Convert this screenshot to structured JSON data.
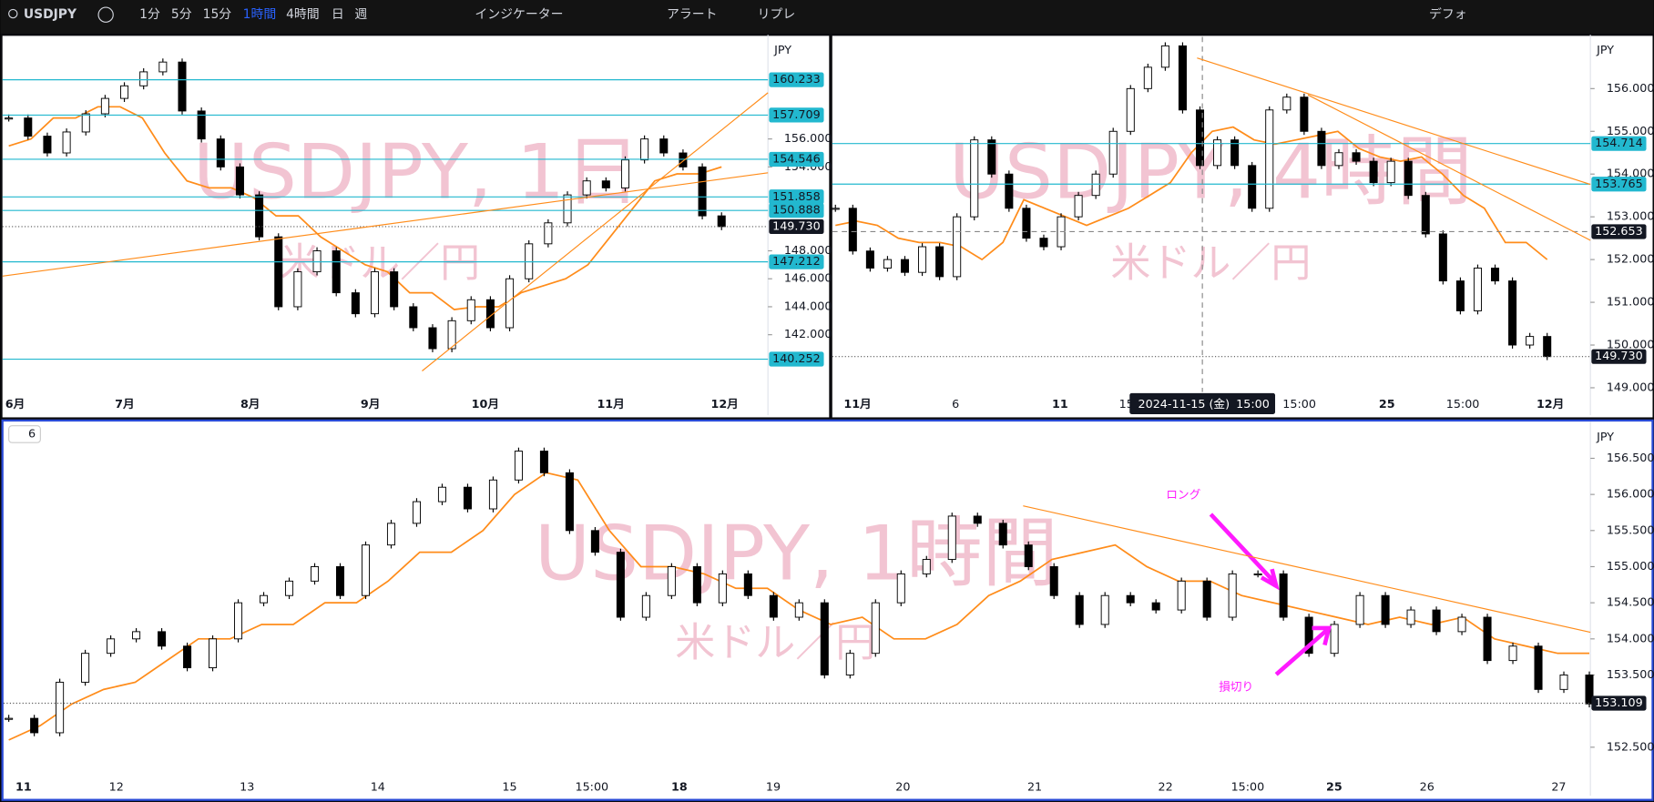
{
  "toolbar": {
    "symbol": "USDJPY",
    "intervals": [
      "1分",
      "5分",
      "15分",
      "1時間",
      "4時間",
      "日",
      "週"
    ],
    "active": 3,
    "indicators": "インジケーター",
    "alert": "アラート",
    "replay": "リプレ",
    "layout": "デフォ"
  },
  "panels": [
    {
      "title": "USDJPY, 1日",
      "subtitle": "米ドル／円",
      "currency": "JPY",
      "ylim": [
        137.9,
        163.3
      ],
      "yticks": [
        {
          "value": 142,
          "label": "142.000"
        },
        {
          "value": 144,
          "label": "144.000"
        },
        {
          "value": 146,
          "label": "146.000"
        },
        {
          "value": 148,
          "label": "148.000"
        },
        {
          "value": 154,
          "label": "154.000"
        },
        {
          "value": 156,
          "label": "156.000"
        }
      ],
      "xlabels": [
        "6月",
        "7月",
        "8月",
        "9月",
        "10月",
        "11月",
        "12月"
      ],
      "price_labels": [
        {
          "value": 160.233,
          "label": "160.233",
          "kind": "level"
        },
        {
          "value": 157.709,
          "label": "157.709",
          "kind": "level"
        },
        {
          "value": 154.546,
          "label": "154.546",
          "kind": "level"
        },
        {
          "value": 151.858,
          "label": "151.858",
          "kind": "level"
        },
        {
          "value": 150.888,
          "label": "150.888",
          "kind": "level"
        },
        {
          "value": 147.212,
          "label": "147.212",
          "kind": "level"
        },
        {
          "value": 140.252,
          "label": "140.252",
          "kind": "level"
        },
        {
          "value": 149.73,
          "label": "149.730",
          "kind": "last"
        }
      ],
      "candles": [
        157.5,
        156.2,
        155,
        156.5,
        157.8,
        158.9,
        159.8,
        160.8,
        161.5,
        158,
        156,
        154,
        152,
        149,
        144,
        146.5,
        148,
        145,
        143.5,
        146.5,
        144,
        142.5,
        141,
        143,
        144.5,
        142.5,
        146,
        148.5,
        150,
        152,
        153,
        152.5,
        154.5,
        156,
        155,
        154,
        150.5,
        149.73
      ],
      "baseline": [
        155.5,
        156,
        157.5,
        157.5,
        158.3,
        158.3,
        157.5,
        155,
        153,
        152.5,
        152.5,
        151.8,
        150.5,
        150.5,
        149,
        148,
        147,
        146.5,
        145,
        145,
        143.8,
        144,
        144,
        145,
        145.5,
        146,
        147,
        149,
        151,
        153,
        153.5,
        153.5,
        154
      ]
    },
    {
      "title": "USDJPY, 4時間",
      "subtitle": "米ドル／円",
      "currency": "JPY",
      "ylim": [
        148.9,
        157.21
      ],
      "yticks": [
        {
          "value": 149,
          "label": "149.000"
        },
        {
          "value": 150,
          "label": "150.000"
        },
        {
          "value": 151,
          "label": "151.000"
        },
        {
          "value": 152,
          "label": "152.000"
        },
        {
          "value": 153,
          "label": "153.000"
        },
        {
          "value": 154,
          "label": "154.000"
        },
        {
          "value": 155,
          "label": "155.000"
        },
        {
          "value": 156,
          "label": "156.000"
        }
      ],
      "xlabels": [
        "11月",
        "6",
        "11",
        "15",
        "15:00",
        "25",
        "15:00",
        "12月"
      ],
      "price_labels": [
        {
          "value": 154.714,
          "label": "154.714",
          "kind": "level"
        },
        {
          "value": 153.765,
          "label": "153.765",
          "kind": "level"
        },
        {
          "value": 152.653,
          "label": "152.653",
          "kind": "crosshair"
        },
        {
          "value": 149.73,
          "label": "149.730",
          "kind": "last"
        }
      ],
      "crosshair": {
        "date": "2024-11-15 (金)",
        "time": "15:00"
      },
      "candles": [
        153.2,
        152.2,
        151.8,
        152,
        151.7,
        152.3,
        151.6,
        153,
        154.8,
        154,
        153.2,
        152.5,
        152.3,
        153,
        153.5,
        154,
        155,
        156,
        156.5,
        157,
        155.5,
        154.2,
        154.8,
        154.2,
        153.2,
        155.5,
        155.8,
        155,
        154.2,
        154.5,
        154.3,
        153.8,
        154.3,
        153.5,
        152.6,
        151.5,
        150.8,
        151.8,
        151.5,
        150,
        150.2,
        149.73
      ],
      "baseline": [
        152.8,
        152.9,
        152.8,
        152.5,
        152.4,
        152.4,
        152.3,
        152,
        152.4,
        153.4,
        153.2,
        153,
        152.8,
        153,
        153.2,
        153.5,
        153.8,
        154.5,
        155,
        155.1,
        154.8,
        154.7,
        154.8,
        154.9,
        155,
        154.6,
        154.4,
        154.3,
        154.4,
        154,
        153.5,
        153.2,
        152.4,
        152.4,
        152
      ]
    },
    {
      "title": "USDJPY, 1時間",
      "subtitle": "米ドル／円",
      "currency": "JPY",
      "interval_badge": "6",
      "ylim": [
        152.15,
        156.98
      ],
      "yticks": [
        {
          "value": 152.5,
          "label": "152.500"
        },
        {
          "value": 153.5,
          "label": "153.500"
        },
        {
          "value": 154,
          "label": "154.000"
        },
        {
          "value": 154.5,
          "label": "154.500"
        },
        {
          "value": 155,
          "label": "155.000"
        },
        {
          "value": 155.5,
          "label": "155.500"
        },
        {
          "value": 156,
          "label": "156.000"
        },
        {
          "value": 156.5,
          "label": "156.500"
        }
      ],
      "xlabels": [
        "11",
        "12",
        "13",
        "14",
        "15",
        "15:00",
        "18",
        "19",
        "20",
        "21",
        "22",
        "15:00",
        "25",
        "26",
        "27"
      ],
      "price_labels": [
        {
          "value": 153.109,
          "label": "153.109",
          "kind": "last"
        }
      ],
      "annotations": [
        "ロング",
        "損切り"
      ],
      "candles": [
        152.9,
        152.7,
        153.4,
        153.8,
        154,
        154.1,
        153.9,
        153.6,
        154,
        154.5,
        154.6,
        154.8,
        155,
        154.6,
        155.3,
        155.6,
        155.9,
        156.1,
        155.8,
        156.2,
        156.6,
        156.3,
        155.5,
        155.2,
        154.3,
        154.6,
        155,
        154.5,
        154.9,
        154.6,
        154.3,
        154.5,
        153.5,
        153.8,
        154.5,
        154.9,
        155.1,
        155.7,
        155.6,
        155.3,
        155,
        154.6,
        154.2,
        154.6,
        154.5,
        154.4,
        154.8,
        154.3,
        154.9,
        154.9,
        154.3,
        153.8,
        154.2,
        154.6,
        154.2,
        154.4,
        154.1,
        154.3,
        153.7,
        153.9,
        153.3,
        153.5,
        153.1
      ],
      "baseline": [
        152.6,
        152.8,
        153.1,
        153.3,
        153.4,
        153.7,
        154,
        154,
        154.2,
        154.2,
        154.5,
        154.5,
        154.8,
        155.2,
        155.2,
        155.5,
        156,
        156.3,
        156.2,
        155.5,
        155,
        155,
        154.9,
        154.7,
        154.7,
        154.4,
        154.2,
        154.3,
        154,
        154,
        154.2,
        154.6,
        154.8,
        155.1,
        155.2,
        155.3,
        155,
        154.8,
        154.8,
        154.6,
        154.5,
        154.4,
        154.3,
        154.2,
        154.3,
        154.2,
        154.3,
        154,
        153.9,
        153.8,
        153.8
      ]
    }
  ]
}
